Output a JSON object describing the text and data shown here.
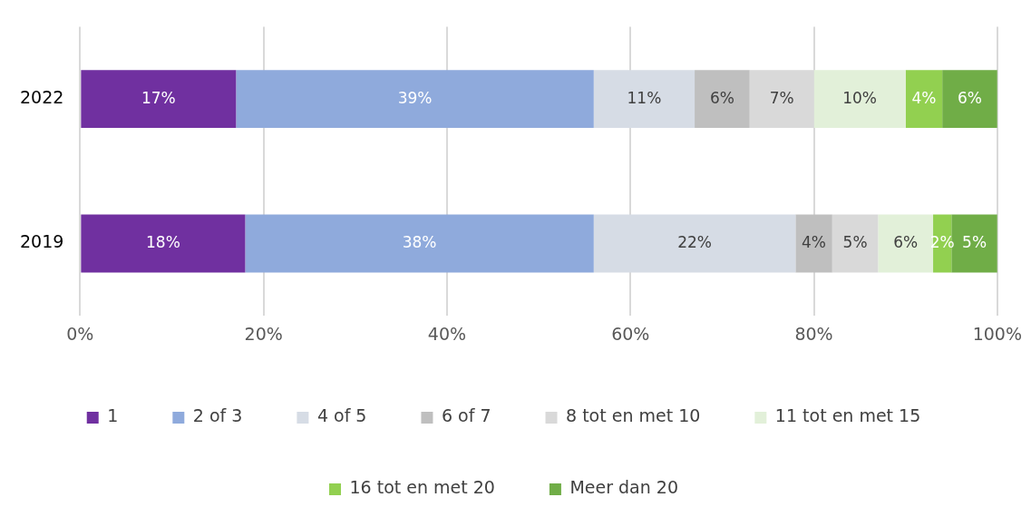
{
  "chart_data": {
    "type": "bar",
    "orientation": "horizontal",
    "stacked": true,
    "categories": [
      "2022",
      "2019"
    ],
    "xlim": [
      0,
      100
    ],
    "xticks": [
      {
        "value": 0,
        "label": "0%"
      },
      {
        "value": 20,
        "label": "20%"
      },
      {
        "value": 40,
        "label": "40%"
      },
      {
        "value": 60,
        "label": "60%"
      },
      {
        "value": 80,
        "label": "80%"
      },
      {
        "value": 100,
        "label": "100%"
      }
    ],
    "grid": "x",
    "legend": "bottom",
    "series": [
      {
        "name": "1",
        "color": "#7030a0",
        "values": [
          17,
          18
        ],
        "value_labels": [
          "17%",
          "18%"
        ]
      },
      {
        "name": "2 of 3",
        "color": "#8faadc",
        "values": [
          39,
          38
        ],
        "value_labels": [
          "39%",
          "38%"
        ]
      },
      {
        "name": "4 of 5",
        "color": "#d6dce5",
        "values": [
          11,
          22
        ],
        "value_labels": [
          "11%",
          "22%"
        ]
      },
      {
        "name": "6 of 7",
        "color": "#bfbfbf",
        "values": [
          6,
          4
        ],
        "value_labels": [
          "6%",
          "4%"
        ]
      },
      {
        "name": "8 tot en met 10",
        "color": "#d9d9d9",
        "values": [
          7,
          5
        ],
        "value_labels": [
          "7%",
          "5%"
        ]
      },
      {
        "name": "11 tot en met 15",
        "color": "#e2f0d9",
        "values": [
          10,
          6
        ],
        "value_labels": [
          "10%",
          "6%"
        ]
      },
      {
        "name": "16 tot en met 20",
        "color": "#92d050",
        "values": [
          4,
          2
        ],
        "value_labels": [
          "4%",
          "2%"
        ]
      },
      {
        "name": "Meer dan 20",
        "color": "#70ad47",
        "values": [
          6,
          5
        ],
        "value_labels": [
          "6%",
          "5%"
        ]
      }
    ]
  }
}
